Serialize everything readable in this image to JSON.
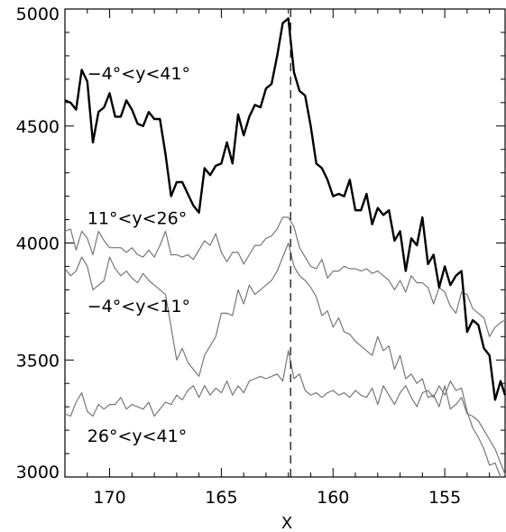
{
  "chart_data": {
    "type": "line",
    "xlabel": "X",
    "ylabel": "",
    "xlim": [
      172,
      152.3
    ],
    "ylim": [
      3000,
      5000
    ],
    "xticks": [
      "170",
      "165",
      "160",
      "155"
    ],
    "xtick_values": [
      170,
      165,
      160,
      155
    ],
    "yticks": [
      "3000",
      "3500",
      "4000",
      "4500",
      "5000"
    ],
    "ytick_values": [
      3000,
      3500,
      4000,
      4500,
      5000
    ],
    "reference_line": {
      "x": 161.9,
      "style": "dashed"
    },
    "series": [
      {
        "name": "−4°<y<41°",
        "color": "#000000",
        "style": "thick",
        "x": [
          172.0,
          171.75,
          171.5,
          171.25,
          171.0,
          170.75,
          170.5,
          170.25,
          170.0,
          169.75,
          169.5,
          169.25,
          169.0,
          168.75,
          168.5,
          168.25,
          168.0,
          167.75,
          167.5,
          167.25,
          167.0,
          166.75,
          166.5,
          166.25,
          166.0,
          165.75,
          165.5,
          165.25,
          165.0,
          164.75,
          164.5,
          164.25,
          164.0,
          163.75,
          163.5,
          163.25,
          163.0,
          162.75,
          162.5,
          162.25,
          162.0,
          161.75,
          161.5,
          161.25,
          161.0,
          160.75,
          160.5,
          160.25,
          160.0,
          159.75,
          159.5,
          159.25,
          159.0,
          158.75,
          158.5,
          158.25,
          158.0,
          157.75,
          157.5,
          157.25,
          157.0,
          156.75,
          156.5,
          156.25,
          156.0,
          155.75,
          155.5,
          155.25,
          155.0,
          154.75,
          154.5,
          154.25,
          154.0,
          153.75,
          153.5,
          153.25,
          153.0,
          152.75,
          152.5,
          152.3
        ],
        "values": [
          4610,
          4600,
          4570,
          4740,
          4690,
          4430,
          4560,
          4580,
          4640,
          4540,
          4540,
          4610,
          4570,
          4510,
          4500,
          4560,
          4530,
          4530,
          4380,
          4200,
          4260,
          4260,
          4210,
          4160,
          4130,
          4320,
          4290,
          4330,
          4340,
          4430,
          4340,
          4550,
          4460,
          4540,
          4590,
          4580,
          4660,
          4680,
          4800,
          4940,
          4960,
          4730,
          4650,
          4630,
          4500,
          4340,
          4320,
          4270,
          4200,
          4210,
          4200,
          4270,
          4140,
          4140,
          4210,
          4080,
          4150,
          4120,
          4140,
          4010,
          4050,
          3880,
          4020,
          3990,
          4110,
          3910,
          3950,
          3810,
          3900,
          3820,
          3860,
          3880,
          3620,
          3670,
          3650,
          3550,
          3520,
          3330,
          3410,
          3350
        ]
      },
      {
        "name": "11°<y<26°",
        "color": "#777777",
        "style": "thin",
        "x": [
          172.0,
          171.75,
          171.5,
          171.25,
          171.0,
          170.75,
          170.5,
          170.25,
          170.0,
          169.75,
          169.5,
          169.25,
          169.0,
          168.75,
          168.5,
          168.25,
          168.0,
          167.75,
          167.5,
          167.25,
          167.0,
          166.75,
          166.5,
          166.25,
          166.0,
          165.75,
          165.5,
          165.25,
          165.0,
          164.75,
          164.5,
          164.25,
          164.0,
          163.75,
          163.5,
          163.25,
          163.0,
          162.75,
          162.5,
          162.25,
          162.0,
          161.75,
          161.5,
          161.25,
          161.0,
          160.75,
          160.5,
          160.25,
          160.0,
          159.75,
          159.5,
          159.25,
          159.0,
          158.75,
          158.5,
          158.25,
          158.0,
          157.75,
          157.5,
          157.25,
          157.0,
          156.75,
          156.5,
          156.25,
          156.0,
          155.75,
          155.5,
          155.25,
          155.0,
          154.75,
          154.5,
          154.25,
          154.0,
          153.75,
          153.5,
          153.25,
          153.0,
          152.75,
          152.5,
          152.3
        ],
        "values": [
          4050,
          4060,
          3970,
          4050,
          4020,
          3950,
          4050,
          4010,
          3980,
          3980,
          3980,
          3960,
          3980,
          3950,
          3940,
          3970,
          3940,
          3990,
          4050,
          3950,
          3950,
          3940,
          3950,
          3930,
          3970,
          4010,
          3990,
          4040,
          3960,
          3920,
          3960,
          3960,
          3910,
          3950,
          3990,
          3990,
          4020,
          4030,
          4060,
          4110,
          4110,
          4070,
          3980,
          3940,
          3900,
          3890,
          3930,
          3850,
          3880,
          3880,
          3900,
          3890,
          3890,
          3880,
          3890,
          3870,
          3880,
          3860,
          3840,
          3800,
          3840,
          3790,
          3860,
          3830,
          3830,
          3810,
          3740,
          3810,
          3790,
          3730,
          3700,
          3790,
          3780,
          3720,
          3700,
          3680,
          3600,
          3640,
          3660,
          3670
        ]
      },
      {
        "name": "−4°<y<11°",
        "color": "#777777",
        "style": "thin",
        "x": [
          172.0,
          171.75,
          171.5,
          171.25,
          171.0,
          170.75,
          170.5,
          170.25,
          170.0,
          169.75,
          169.5,
          169.25,
          169.0,
          168.75,
          168.5,
          168.25,
          168.0,
          167.75,
          167.5,
          167.25,
          167.0,
          166.75,
          166.5,
          166.25,
          166.0,
          165.75,
          165.5,
          165.25,
          165.0,
          164.75,
          164.5,
          164.25,
          164.0,
          163.75,
          163.5,
          163.25,
          163.0,
          162.75,
          162.5,
          162.25,
          162.0,
          161.75,
          161.5,
          161.25,
          161.0,
          160.75,
          160.5,
          160.25,
          160.0,
          159.75,
          159.5,
          159.25,
          159.0,
          158.75,
          158.5,
          158.25,
          158.0,
          157.75,
          157.5,
          157.25,
          157.0,
          156.75,
          156.5,
          156.25,
          156.0,
          155.75,
          155.5,
          155.25,
          155.0,
          154.75,
          154.5,
          154.25,
          154.0,
          153.75,
          153.5,
          153.25,
          153.0,
          152.75,
          152.5,
          152.3
        ],
        "values": [
          3890,
          3860,
          3880,
          3940,
          3900,
          3800,
          3820,
          3840,
          3940,
          3890,
          3860,
          3880,
          3850,
          3830,
          3870,
          3840,
          3820,
          3800,
          3780,
          3640,
          3500,
          3550,
          3490,
          3460,
          3430,
          3520,
          3560,
          3600,
          3700,
          3700,
          3690,
          3800,
          3740,
          3820,
          3780,
          3800,
          3820,
          3840,
          3880,
          3940,
          4000,
          3900,
          3860,
          3840,
          3810,
          3770,
          3690,
          3710,
          3640,
          3680,
          3620,
          3610,
          3580,
          3560,
          3540,
          3520,
          3600,
          3540,
          3560,
          3460,
          3520,
          3420,
          3440,
          3400,
          3420,
          3340,
          3350,
          3300,
          3390,
          3290,
          3310,
          3340,
          3270,
          3260,
          3240,
          3200,
          3160,
          3120,
          3060,
          3010
        ]
      },
      {
        "name": "26°<y<41°",
        "color": "#777777",
        "style": "thin",
        "x": [
          172.0,
          171.75,
          171.5,
          171.25,
          171.0,
          170.75,
          170.5,
          170.25,
          170.0,
          169.75,
          169.5,
          169.25,
          169.0,
          168.75,
          168.5,
          168.25,
          168.0,
          167.75,
          167.5,
          167.25,
          167.0,
          166.75,
          166.5,
          166.25,
          166.0,
          165.75,
          165.5,
          165.25,
          165.0,
          164.75,
          164.5,
          164.25,
          164.0,
          163.75,
          163.5,
          163.25,
          163.0,
          162.75,
          162.5,
          162.25,
          162.0,
          161.75,
          161.5,
          161.25,
          161.0,
          160.75,
          160.5,
          160.25,
          160.0,
          159.75,
          159.5,
          159.25,
          159.0,
          158.75,
          158.5,
          158.25,
          158.0,
          157.75,
          157.5,
          157.25,
          157.0,
          156.75,
          156.5,
          156.25,
          156.0,
          155.75,
          155.5,
          155.25,
          155.0,
          154.75,
          154.5,
          154.25,
          154.0,
          153.75,
          153.5,
          153.25,
          153.0,
          152.75,
          152.5,
          152.3
        ],
        "values": [
          3270,
          3260,
          3320,
          3360,
          3280,
          3260,
          3310,
          3290,
          3310,
          3310,
          3340,
          3290,
          3310,
          3300,
          3290,
          3320,
          3260,
          3290,
          3320,
          3310,
          3350,
          3330,
          3370,
          3390,
          3340,
          3390,
          3350,
          3380,
          3360,
          3410,
          3350,
          3390,
          3360,
          3410,
          3420,
          3430,
          3420,
          3430,
          3440,
          3410,
          3540,
          3420,
          3440,
          3370,
          3350,
          3360,
          3340,
          3360,
          3370,
          3350,
          3360,
          3340,
          3370,
          3350,
          3340,
          3380,
          3310,
          3390,
          3350,
          3310,
          3360,
          3390,
          3340,
          3300,
          3360,
          3370,
          3340,
          3390,
          3350,
          3410,
          3370,
          3380,
          3280,
          3210,
          3170,
          3120,
          3050,
          3060,
          3000,
          2980
        ]
      }
    ],
    "labels": [
      {
        "text": "−4°<y<41°",
        "x": 171.0,
        "y": 4700
      },
      {
        "text": "11°<y<26°",
        "x": 171.0,
        "y": 4080
      },
      {
        "text": "−4°<y<11°",
        "x": 171.0,
        "y": 3705
      },
      {
        "text": "26°<y<41°",
        "x": 171.0,
        "y": 3150
      }
    ]
  }
}
